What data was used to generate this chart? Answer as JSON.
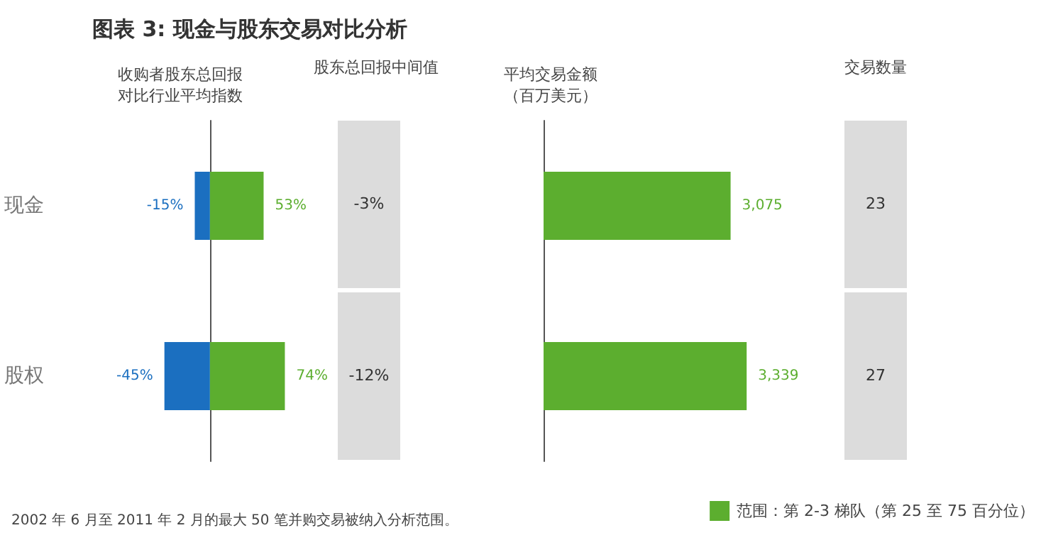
{
  "chart_data": [
    {
      "type": "bar",
      "title": "图表 3: 现金与股东交易对比分析",
      "subtitle": "收购者股东总回报对比行业平均指数",
      "orientation": "horizontal",
      "stacked": true,
      "categories": [
        "现金",
        "股权"
      ],
      "tick_labels": "y",
      "series": [
        {
          "color": "#1b6fc0",
          "values": [
            -15,
            -45
          ],
          "value_labels": [
            "-15%",
            "-45%"
          ]
        },
        {
          "color": "#5cae2f",
          "values": [
            53,
            74
          ],
          "value_labels": [
            "53%",
            "74%"
          ]
        }
      ],
      "annotations": [
        "2002 年 6 月至 2011 年 2 月的最大 50 笔并购交易被纳入分析范围。"
      ]
    },
    {
      "type": "other",
      "title": "股东总回报中间值",
      "annotations": [
        "-3%",
        "-12%"
      ]
    },
    {
      "type": "bar",
      "title": "平均交易金额（百万美元）",
      "orientation": "horizontal",
      "categories": [
        null,
        null
      ],
      "tick_labels": false,
      "legend": "bottom right",
      "series": [
        {
          "name": "范围：第 2-3 梯队（第 25 至 75 百分位）",
          "color": "#5cae2f",
          "values": [
            3075,
            3339
          ],
          "value_labels": [
            "3,075",
            "3,339"
          ]
        }
      ]
    },
    {
      "type": "other",
      "title": "交易数量",
      "annotations": [
        "23",
        "27"
      ]
    }
  ]
}
